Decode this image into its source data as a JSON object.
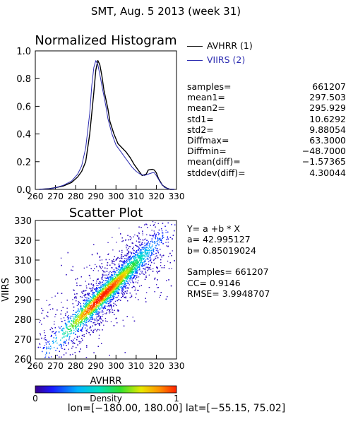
{
  "title": "SMT,  Aug. 5 2013 (week 31)",
  "footer": "lon=[−180.00, 180.00] lat=[−55.15, 75.02]",
  "colors": {
    "avhrr": "#000000",
    "viirs": "#2a2ab0"
  },
  "chart_data": [
    {
      "type": "line",
      "title": "Normalized Histogram",
      "xlim": [
        260,
        330
      ],
      "ylim": [
        0.0,
        1.0
      ],
      "x_ticks": [
        "260",
        "270",
        "280",
        "290",
        "300",
        "310",
        "320",
        "330"
      ],
      "y_ticks": [
        "0.0",
        "0.2",
        "0.4",
        "0.6",
        "0.8",
        "1.0"
      ],
      "legend_position": "right",
      "series": [
        {
          "name": "AVHRR (1)",
          "x": [
            262,
            267,
            270,
            274,
            278,
            281,
            283,
            285,
            287,
            289,
            290,
            291,
            292,
            293,
            294,
            296,
            297,
            299,
            301,
            303,
            305,
            307,
            309,
            311,
            313,
            315,
            316,
            318,
            319,
            320,
            321,
            323,
            325,
            327,
            329
          ],
          "y": [
            0.0,
            0.005,
            0.012,
            0.025,
            0.05,
            0.09,
            0.13,
            0.2,
            0.4,
            0.7,
            0.86,
            0.93,
            0.9,
            0.82,
            0.72,
            0.58,
            0.49,
            0.4,
            0.33,
            0.3,
            0.27,
            0.23,
            0.18,
            0.14,
            0.1,
            0.11,
            0.14,
            0.145,
            0.14,
            0.12,
            0.08,
            0.03,
            0.01,
            0.0,
            0.0
          ]
        },
        {
          "name": "VIIRS (2)",
          "x": [
            262,
            267,
            270,
            274,
            278,
            281,
            283,
            285,
            287,
            288,
            289,
            290,
            291,
            292,
            293,
            295,
            296,
            298,
            300,
            302,
            304,
            306,
            308,
            310,
            312,
            314,
            316,
            318,
            319,
            320,
            322,
            324,
            326,
            329
          ],
          "y": [
            0.0,
            0.005,
            0.012,
            0.03,
            0.06,
            0.11,
            0.17,
            0.3,
            0.55,
            0.75,
            0.88,
            0.93,
            0.9,
            0.83,
            0.75,
            0.6,
            0.51,
            0.4,
            0.32,
            0.28,
            0.24,
            0.2,
            0.16,
            0.13,
            0.11,
            0.1,
            0.11,
            0.12,
            0.12,
            0.1,
            0.05,
            0.015,
            0.003,
            0.0
          ]
        }
      ]
    },
    {
      "type": "heatmap",
      "title": "Scatter Plot",
      "xlabel": "AVHRR",
      "ylabel": "VIIRS",
      "xlim": [
        260,
        330
      ],
      "ylim": [
        260,
        330
      ],
      "x_ticks": [
        "260",
        "270",
        "280",
        "290",
        "300",
        "310",
        "320",
        "330"
      ],
      "y_ticks": [
        "260",
        "270",
        "280",
        "290",
        "300",
        "310",
        "320",
        "330"
      ],
      "fit": {
        "a": 42.995127,
        "b": 0.85019024
      },
      "colorbar": {
        "label": "Density",
        "min_label": "0",
        "max_label": "1",
        "range": [
          0,
          1
        ]
      }
    }
  ],
  "stats": [
    {
      "label": "samples=",
      "value": "661207"
    },
    {
      "label": "mean1=",
      "value": "297.503"
    },
    {
      "label": "mean2=",
      "value": "295.929"
    },
    {
      "label": "std1=",
      "value": "10.6292"
    },
    {
      "label": "std2=",
      "value": "9.88054"
    },
    {
      "label": "Diffmax=",
      "value": "63.3000"
    },
    {
      "label": "Diffmin=",
      "value": "−48.7000"
    },
    {
      "label": "mean(diff)=",
      "value": "−1.57365"
    },
    {
      "label": "stddev(diff)=",
      "value": "4.30044"
    }
  ],
  "fit_text": {
    "equation": "Y= a +b * X",
    "a_line": "a= 42.995127",
    "b_line": "b= 0.85019024",
    "samples_line": "Samples= 661207",
    "cc_line": "CC=  0.9146",
    "rmse_line": "RMSE= 3.9948707"
  }
}
